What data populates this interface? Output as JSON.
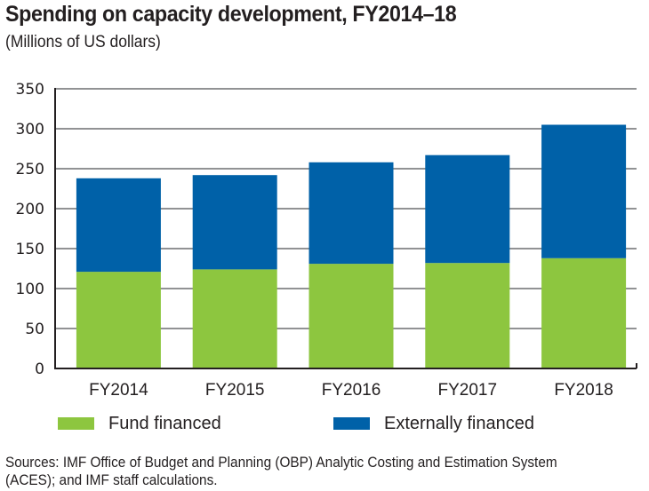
{
  "chart_data": {
    "type": "bar",
    "stacked": true,
    "title": "Spending on capacity development, FY2014–18",
    "subtitle": "(Millions of US dollars)",
    "xlabel": "",
    "ylabel": "",
    "categories": [
      "FY2014",
      "FY2015",
      "FY2016",
      "FY2017",
      "FY2018"
    ],
    "series": [
      {
        "name": "Fund financed",
        "color": "#8dc63f",
        "values": [
          121,
          124,
          131,
          132,
          138
        ]
      },
      {
        "name": "Externally financed",
        "color": "#0061a8",
        "values": [
          117,
          118,
          127,
          135,
          167
        ]
      }
    ],
    "totals": [
      238,
      242,
      258,
      267,
      305
    ],
    "ylim": [
      0,
      350
    ],
    "yticks": [
      0,
      50,
      100,
      150,
      200,
      250,
      300,
      350
    ],
    "grid": true,
    "legend_position": "bottom"
  },
  "legend": [
    {
      "label": "Fund financed",
      "color": "#8dc63f"
    },
    {
      "label": "Externally financed",
      "color": "#0061a8"
    }
  ],
  "source": "Sources: IMF Office of Budget and Planning (OBP) Analytic Costing and Estimation System (ACES); and IMF staff calculations."
}
